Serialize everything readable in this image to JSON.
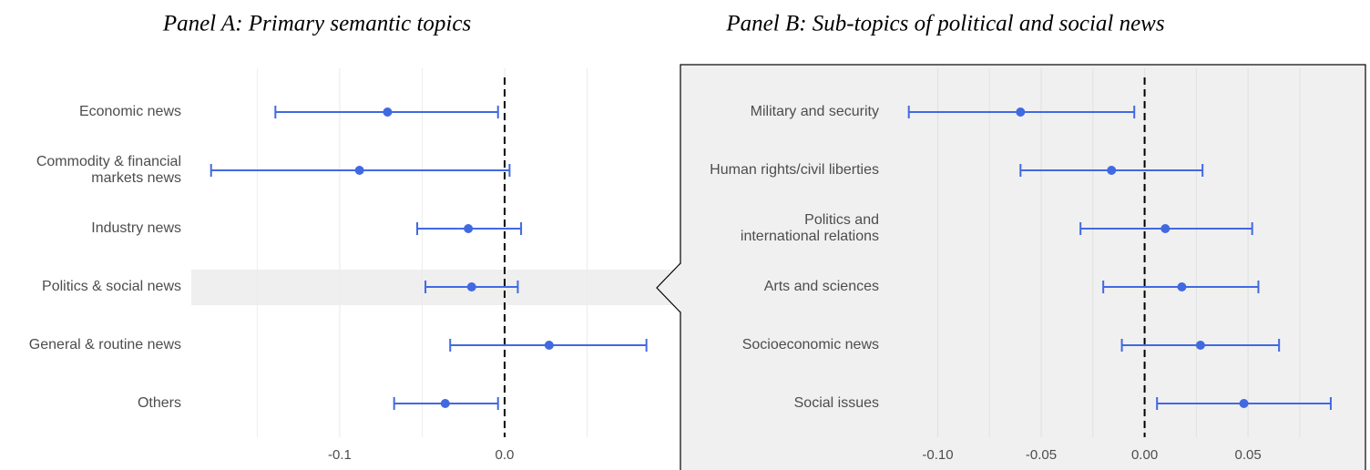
{
  "chart_data": [
    {
      "type": "errorbar",
      "title": "Panel A: Primary semantic topics",
      "categories": [
        "Economic news",
        "Commodity & financial\nmarkets news",
        "Industry news",
        "Politics & social news",
        "General & routine news",
        "Others"
      ],
      "values": [
        -0.071,
        -0.088,
        -0.022,
        -0.02,
        0.027,
        -0.036
      ],
      "lower": [
        -0.139,
        -0.178,
        -0.053,
        -0.048,
        -0.033,
        -0.067
      ],
      "upper": [
        -0.004,
        0.003,
        0.01,
        0.008,
        0.086,
        -0.004
      ],
      "color": "#4169e1",
      "xlim": [
        -0.19,
        0.1
      ],
      "xticks": [
        {
          "value": -0.1,
          "label": "-0.1"
        },
        {
          "value": 0,
          "label": "0.0"
        }
      ],
      "xminorticks": [
        -0.15,
        -0.05,
        0.05
      ],
      "reference_line": 0,
      "grid": true,
      "highlight_index": 3
    },
    {
      "type": "errorbar",
      "title": "Panel B: Sub-topics of political and social news",
      "categories": [
        "Military and security",
        "Human rights/civil liberties",
        "Politics and\ninternational relations",
        "Arts and sciences",
        "Socioeconomic news",
        "Social issues"
      ],
      "values": [
        -0.06,
        -0.016,
        0.01,
        0.018,
        0.027,
        0.048
      ],
      "lower": [
        -0.114,
        -0.06,
        -0.031,
        -0.02,
        -0.011,
        0.006
      ],
      "upper": [
        -0.005,
        0.028,
        0.052,
        0.055,
        0.065,
        0.09
      ],
      "color": "#4169e1",
      "xlim": [
        -0.124,
        0.105
      ],
      "xticks": [
        {
          "value": -0.1,
          "label": "-0.10"
        },
        {
          "value": -0.05,
          "label": "-0.05"
        },
        {
          "value": 0,
          "label": "0.00"
        },
        {
          "value": 0.05,
          "label": "0.05"
        }
      ],
      "xminorticks": [
        -0.075,
        -0.025,
        0.025,
        0.075
      ],
      "reference_line": 0,
      "grid": true,
      "background": "#f0f0f0"
    }
  ]
}
